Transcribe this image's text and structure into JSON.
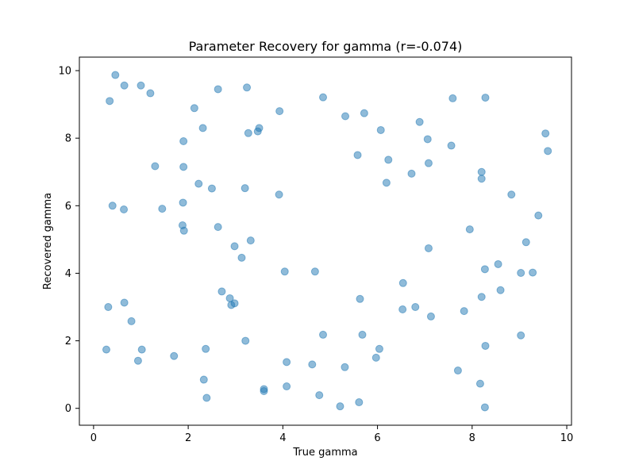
{
  "chart_data": {
    "type": "scatter",
    "title": "Parameter Recovery for gamma (r=-0.074)",
    "xlabel": "True gamma",
    "ylabel": "Recovered gamma",
    "xlim": [
      -0.3,
      10.1
    ],
    "ylim": [
      -0.5,
      10.4
    ],
    "xticks": [
      0,
      2,
      4,
      6,
      8,
      10
    ],
    "yticks": [
      0,
      2,
      4,
      6,
      8,
      10
    ],
    "grid": false,
    "point_color": "#1f77b4",
    "point_alpha": 0.5,
    "points": [
      [
        0.46,
        9.87
      ],
      [
        0.65,
        9.56
      ],
      [
        1.0,
        9.56
      ],
      [
        0.34,
        9.1
      ],
      [
        1.2,
        9.33
      ],
      [
        2.63,
        9.45
      ],
      [
        3.24,
        9.5
      ],
      [
        2.13,
        8.89
      ],
      [
        4.85,
        9.21
      ],
      [
        3.93,
        8.8
      ],
      [
        2.31,
        8.3
      ],
      [
        3.5,
        8.3
      ],
      [
        3.27,
        8.15
      ],
      [
        3.47,
        8.2
      ],
      [
        1.9,
        7.91
      ],
      [
        5.32,
        8.65
      ],
      [
        5.72,
        8.74
      ],
      [
        6.07,
        8.24
      ],
      [
        6.89,
        8.48
      ],
      [
        7.59,
        9.18
      ],
      [
        8.28,
        9.2
      ],
      [
        7.06,
        7.97
      ],
      [
        7.56,
        7.78
      ],
      [
        5.58,
        7.5
      ],
      [
        6.23,
        7.36
      ],
      [
        9.55,
        8.14
      ],
      [
        9.6,
        7.62
      ],
      [
        1.3,
        7.17
      ],
      [
        1.9,
        7.15
      ],
      [
        7.08,
        7.26
      ],
      [
        6.72,
        6.95
      ],
      [
        8.2,
        7.0
      ],
      [
        6.19,
        6.68
      ],
      [
        8.2,
        6.8
      ],
      [
        2.22,
        6.65
      ],
      [
        2.5,
        6.51
      ],
      [
        3.2,
        6.52
      ],
      [
        3.92,
        6.33
      ],
      [
        8.83,
        6.33
      ],
      [
        0.4,
        6.0
      ],
      [
        0.64,
        5.89
      ],
      [
        1.45,
        5.91
      ],
      [
        1.89,
        6.09
      ],
      [
        9.4,
        5.71
      ],
      [
        1.88,
        5.42
      ],
      [
        1.91,
        5.26
      ],
      [
        2.63,
        5.37
      ],
      [
        7.95,
        5.3
      ],
      [
        3.32,
        4.97
      ],
      [
        2.98,
        4.8
      ],
      [
        9.14,
        4.92
      ],
      [
        7.08,
        4.74
      ],
      [
        3.13,
        4.46
      ],
      [
        4.04,
        4.05
      ],
      [
        4.68,
        4.05
      ],
      [
        8.55,
        4.27
      ],
      [
        8.27,
        4.12
      ],
      [
        9.03,
        4.01
      ],
      [
        9.28,
        4.02
      ],
      [
        6.54,
        3.71
      ],
      [
        8.6,
        3.5
      ],
      [
        2.71,
        3.46
      ],
      [
        2.88,
        3.26
      ],
      [
        5.63,
        3.24
      ],
      [
        8.2,
        3.3
      ],
      [
        0.31,
        3.0
      ],
      [
        0.65,
        3.13
      ],
      [
        2.91,
        3.06
      ],
      [
        2.98,
        3.11
      ],
      [
        6.53,
        2.93
      ],
      [
        6.8,
        3.0
      ],
      [
        7.83,
        2.88
      ],
      [
        7.13,
        2.72
      ],
      [
        0.8,
        2.58
      ],
      [
        4.85,
        2.18
      ],
      [
        5.68,
        2.18
      ],
      [
        9.03,
        2.16
      ],
      [
        3.21,
        2.0
      ],
      [
        8.28,
        1.85
      ],
      [
        0.27,
        1.74
      ],
      [
        1.02,
        1.74
      ],
      [
        2.37,
        1.76
      ],
      [
        6.04,
        1.76
      ],
      [
        1.7,
        1.55
      ],
      [
        0.94,
        1.41
      ],
      [
        5.97,
        1.5
      ],
      [
        4.08,
        1.37
      ],
      [
        4.62,
        1.3
      ],
      [
        5.31,
        1.22
      ],
      [
        7.7,
        1.12
      ],
      [
        2.33,
        0.85
      ],
      [
        8.17,
        0.73
      ],
      [
        4.08,
        0.65
      ],
      [
        3.6,
        0.57
      ],
      [
        3.6,
        0.51
      ],
      [
        4.77,
        0.39
      ],
      [
        2.39,
        0.31
      ],
      [
        5.61,
        0.18
      ],
      [
        5.21,
        0.06
      ],
      [
        8.27,
        0.03
      ]
    ]
  }
}
